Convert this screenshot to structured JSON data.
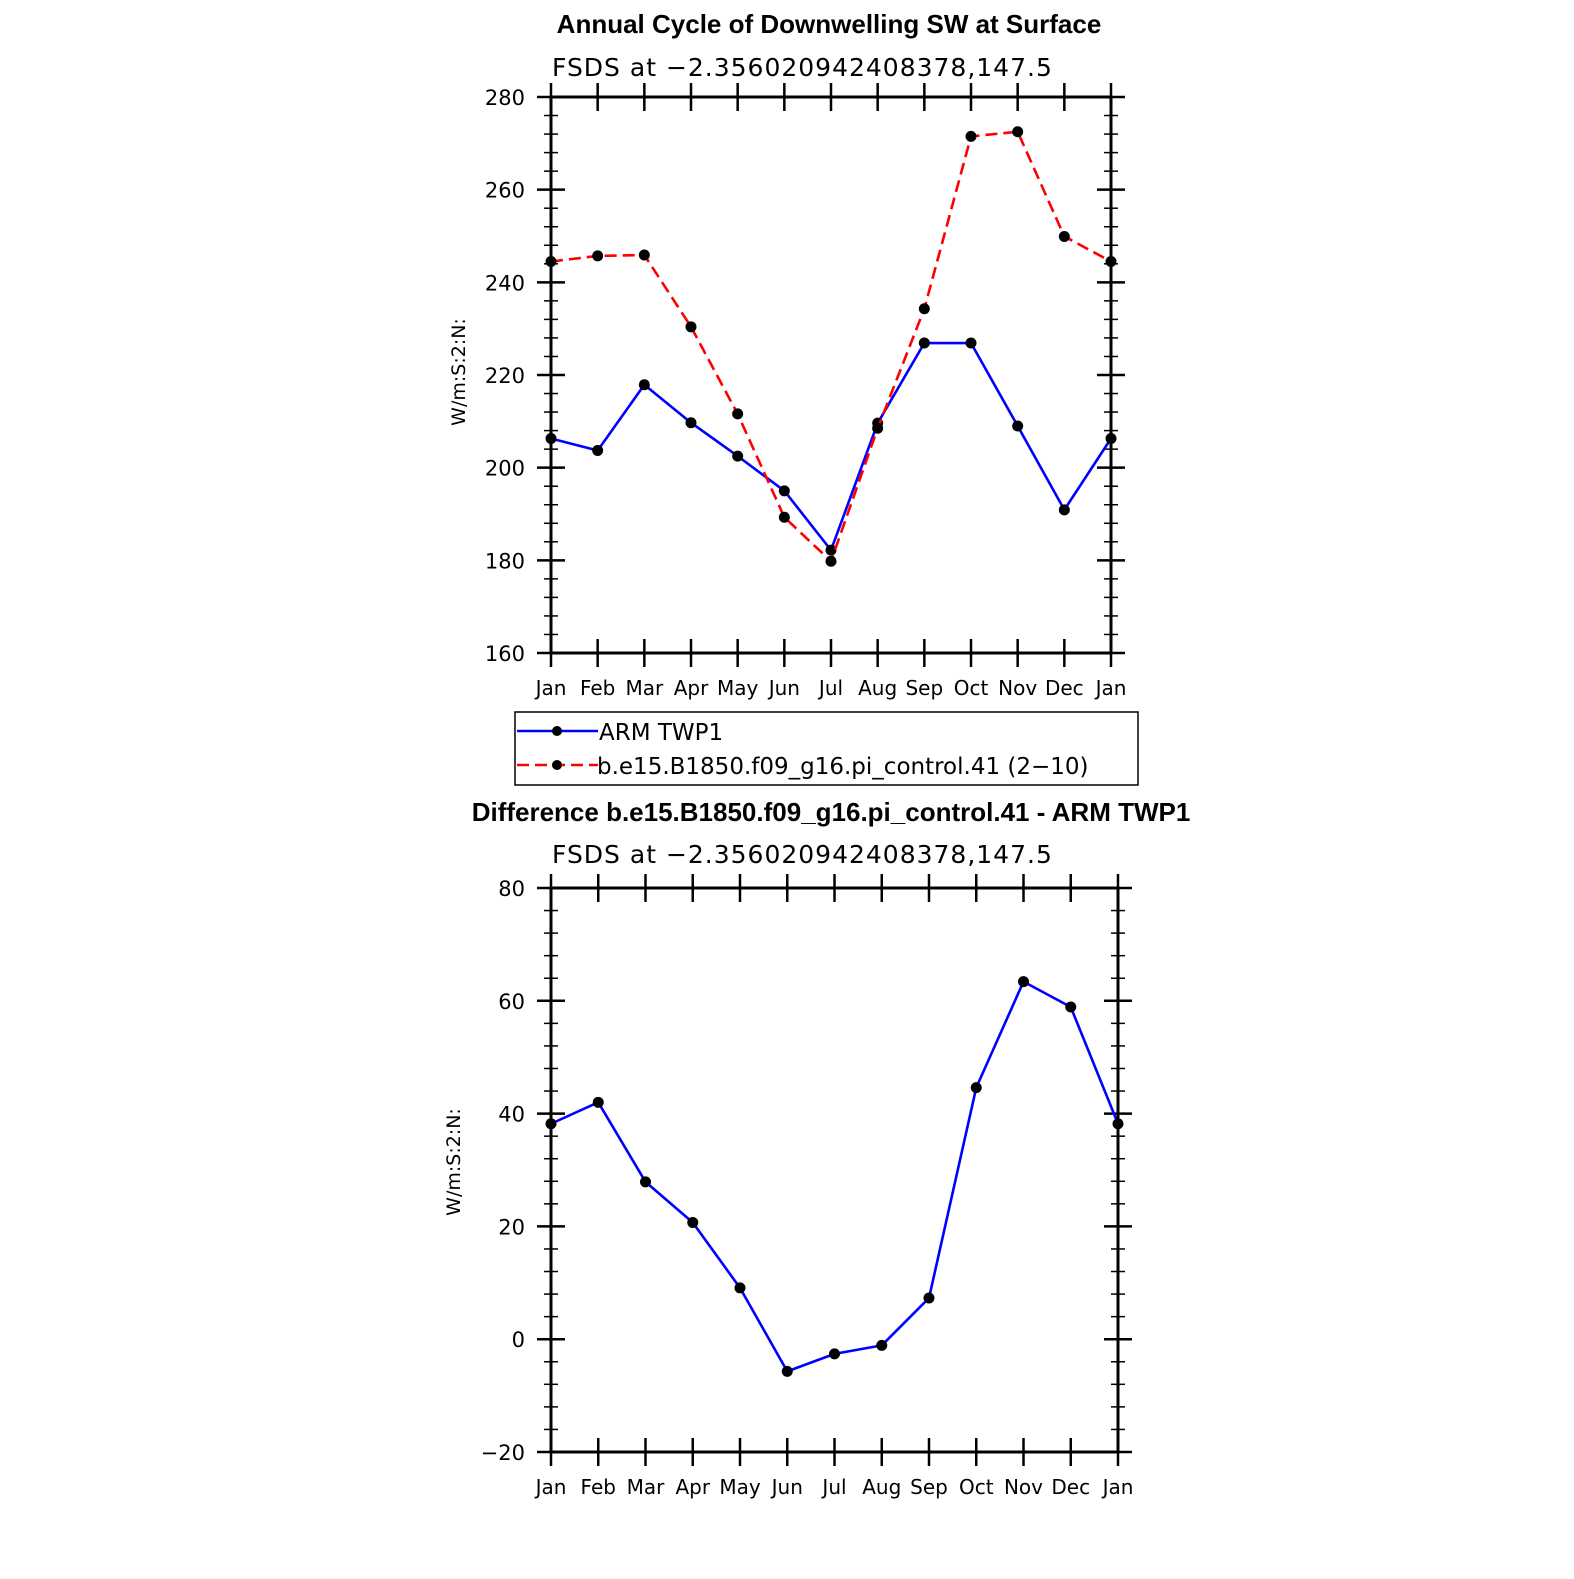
{
  "chart_data": [
    {
      "type": "line",
      "title": "Annual Cycle of Downwelling SW at Surface",
      "subtitle": "FSDS at −2.356020942408378,147.5",
      "ylabel": "W/m:S:2:N:",
      "xlabel": "",
      "ylim": [
        160,
        280
      ],
      "yticks": [
        160,
        180,
        200,
        220,
        240,
        260,
        280
      ],
      "ytick_labels": [
        "160",
        "180",
        "200",
        "220",
        "240",
        "260",
        "280"
      ],
      "categories": [
        "Jan",
        "Feb",
        "Mar",
        "Apr",
        "May",
        "Jun",
        "Jul",
        "Aug",
        "Sep",
        "Oct",
        "Nov",
        "Dec",
        "Jan"
      ],
      "series": [
        {
          "name": "ARM TWP1",
          "color": "#0000ff",
          "dash": "solid",
          "values": [
            206.3,
            203.7,
            217.9,
            209.7,
            202.5,
            195.0,
            182.2,
            209.6,
            226.9,
            226.9,
            209.0,
            190.9,
            206.3
          ]
        },
        {
          "name": "b.e15.B1850.f09_g16.pi_control.41 (2−10)",
          "color": "#ff0000",
          "dash": "dashed",
          "values": [
            244.5,
            245.7,
            245.9,
            230.4,
            211.6,
            189.3,
            179.8,
            208.5,
            234.3,
            271.5,
            272.5,
            249.9,
            244.5
          ]
        }
      ],
      "legend": {
        "position": "below",
        "entries": [
          "ARM TWP1",
          "b.e15.B1850.f09_g16.pi_control.41 (2−10)"
        ]
      }
    },
    {
      "type": "line",
      "title": "Difference b.e15.B1850.f09_g16.pi_control.41 - ARM TWP1",
      "subtitle": "FSDS at −2.356020942408378,147.5",
      "ylabel": "W/m:S:2:N:",
      "xlabel": "",
      "ylim": [
        -20,
        80
      ],
      "yticks": [
        -20,
        0,
        20,
        40,
        60,
        80
      ],
      "ytick_labels": [
        "−20",
        "0",
        "20",
        "40",
        "60",
        "80"
      ],
      "categories": [
        "Jan",
        "Feb",
        "Mar",
        "Apr",
        "May",
        "Jun",
        "Jul",
        "Aug",
        "Sep",
        "Oct",
        "Nov",
        "Dec",
        "Jan"
      ],
      "series": [
        {
          "name": "Difference",
          "color": "#0000ff",
          "dash": "solid",
          "values": [
            38.2,
            42.0,
            27.9,
            20.7,
            9.1,
            -5.7,
            -2.6,
            -1.1,
            7.3,
            44.6,
            63.4,
            58.9,
            38.2
          ]
        }
      ]
    }
  ]
}
